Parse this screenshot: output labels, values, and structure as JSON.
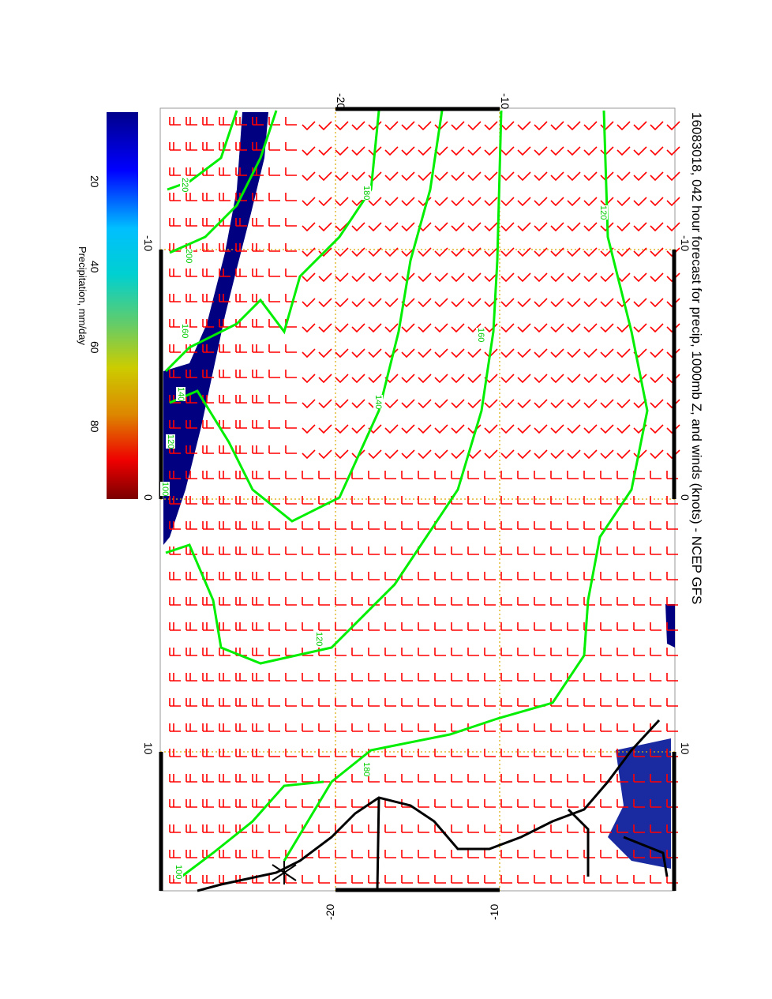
{
  "title": "16083018, 042 hour forecast for precip, 1000mb Z, and winds (knots) - NCEP GFS",
  "colorbar": {
    "label": "Precipitation, mm/day",
    "ticks": [
      "20",
      "40",
      "60",
      "80"
    ],
    "range": [
      0,
      100
    ],
    "colors": [
      "#00008b",
      "#0000ff",
      "#00bfff",
      "#00d0d0",
      "#66cc66",
      "#cccc00",
      "#dd8800",
      "#ee0000",
      "#7a0000"
    ]
  },
  "axes": {
    "lat_ticks_top": [
      "-20",
      "-10"
    ],
    "lat_ticks_bottom": [
      "-20",
      "-10"
    ],
    "lon_ticks_left": [
      "-10",
      "0",
      "10"
    ],
    "lon_ticks_right": [
      "-10",
      "0",
      "10"
    ]
  },
  "contours": {
    "color": "#00ff00",
    "labels": [
      "220",
      "200",
      "180",
      "160",
      "140",
      "120",
      "100",
      "120",
      "140",
      "160",
      "180",
      "120",
      "100"
    ]
  },
  "colors": {
    "wind_barbs": "#ff0000",
    "grid": "#ddaa00",
    "coastline": "#000000",
    "precip": "#000080"
  }
}
